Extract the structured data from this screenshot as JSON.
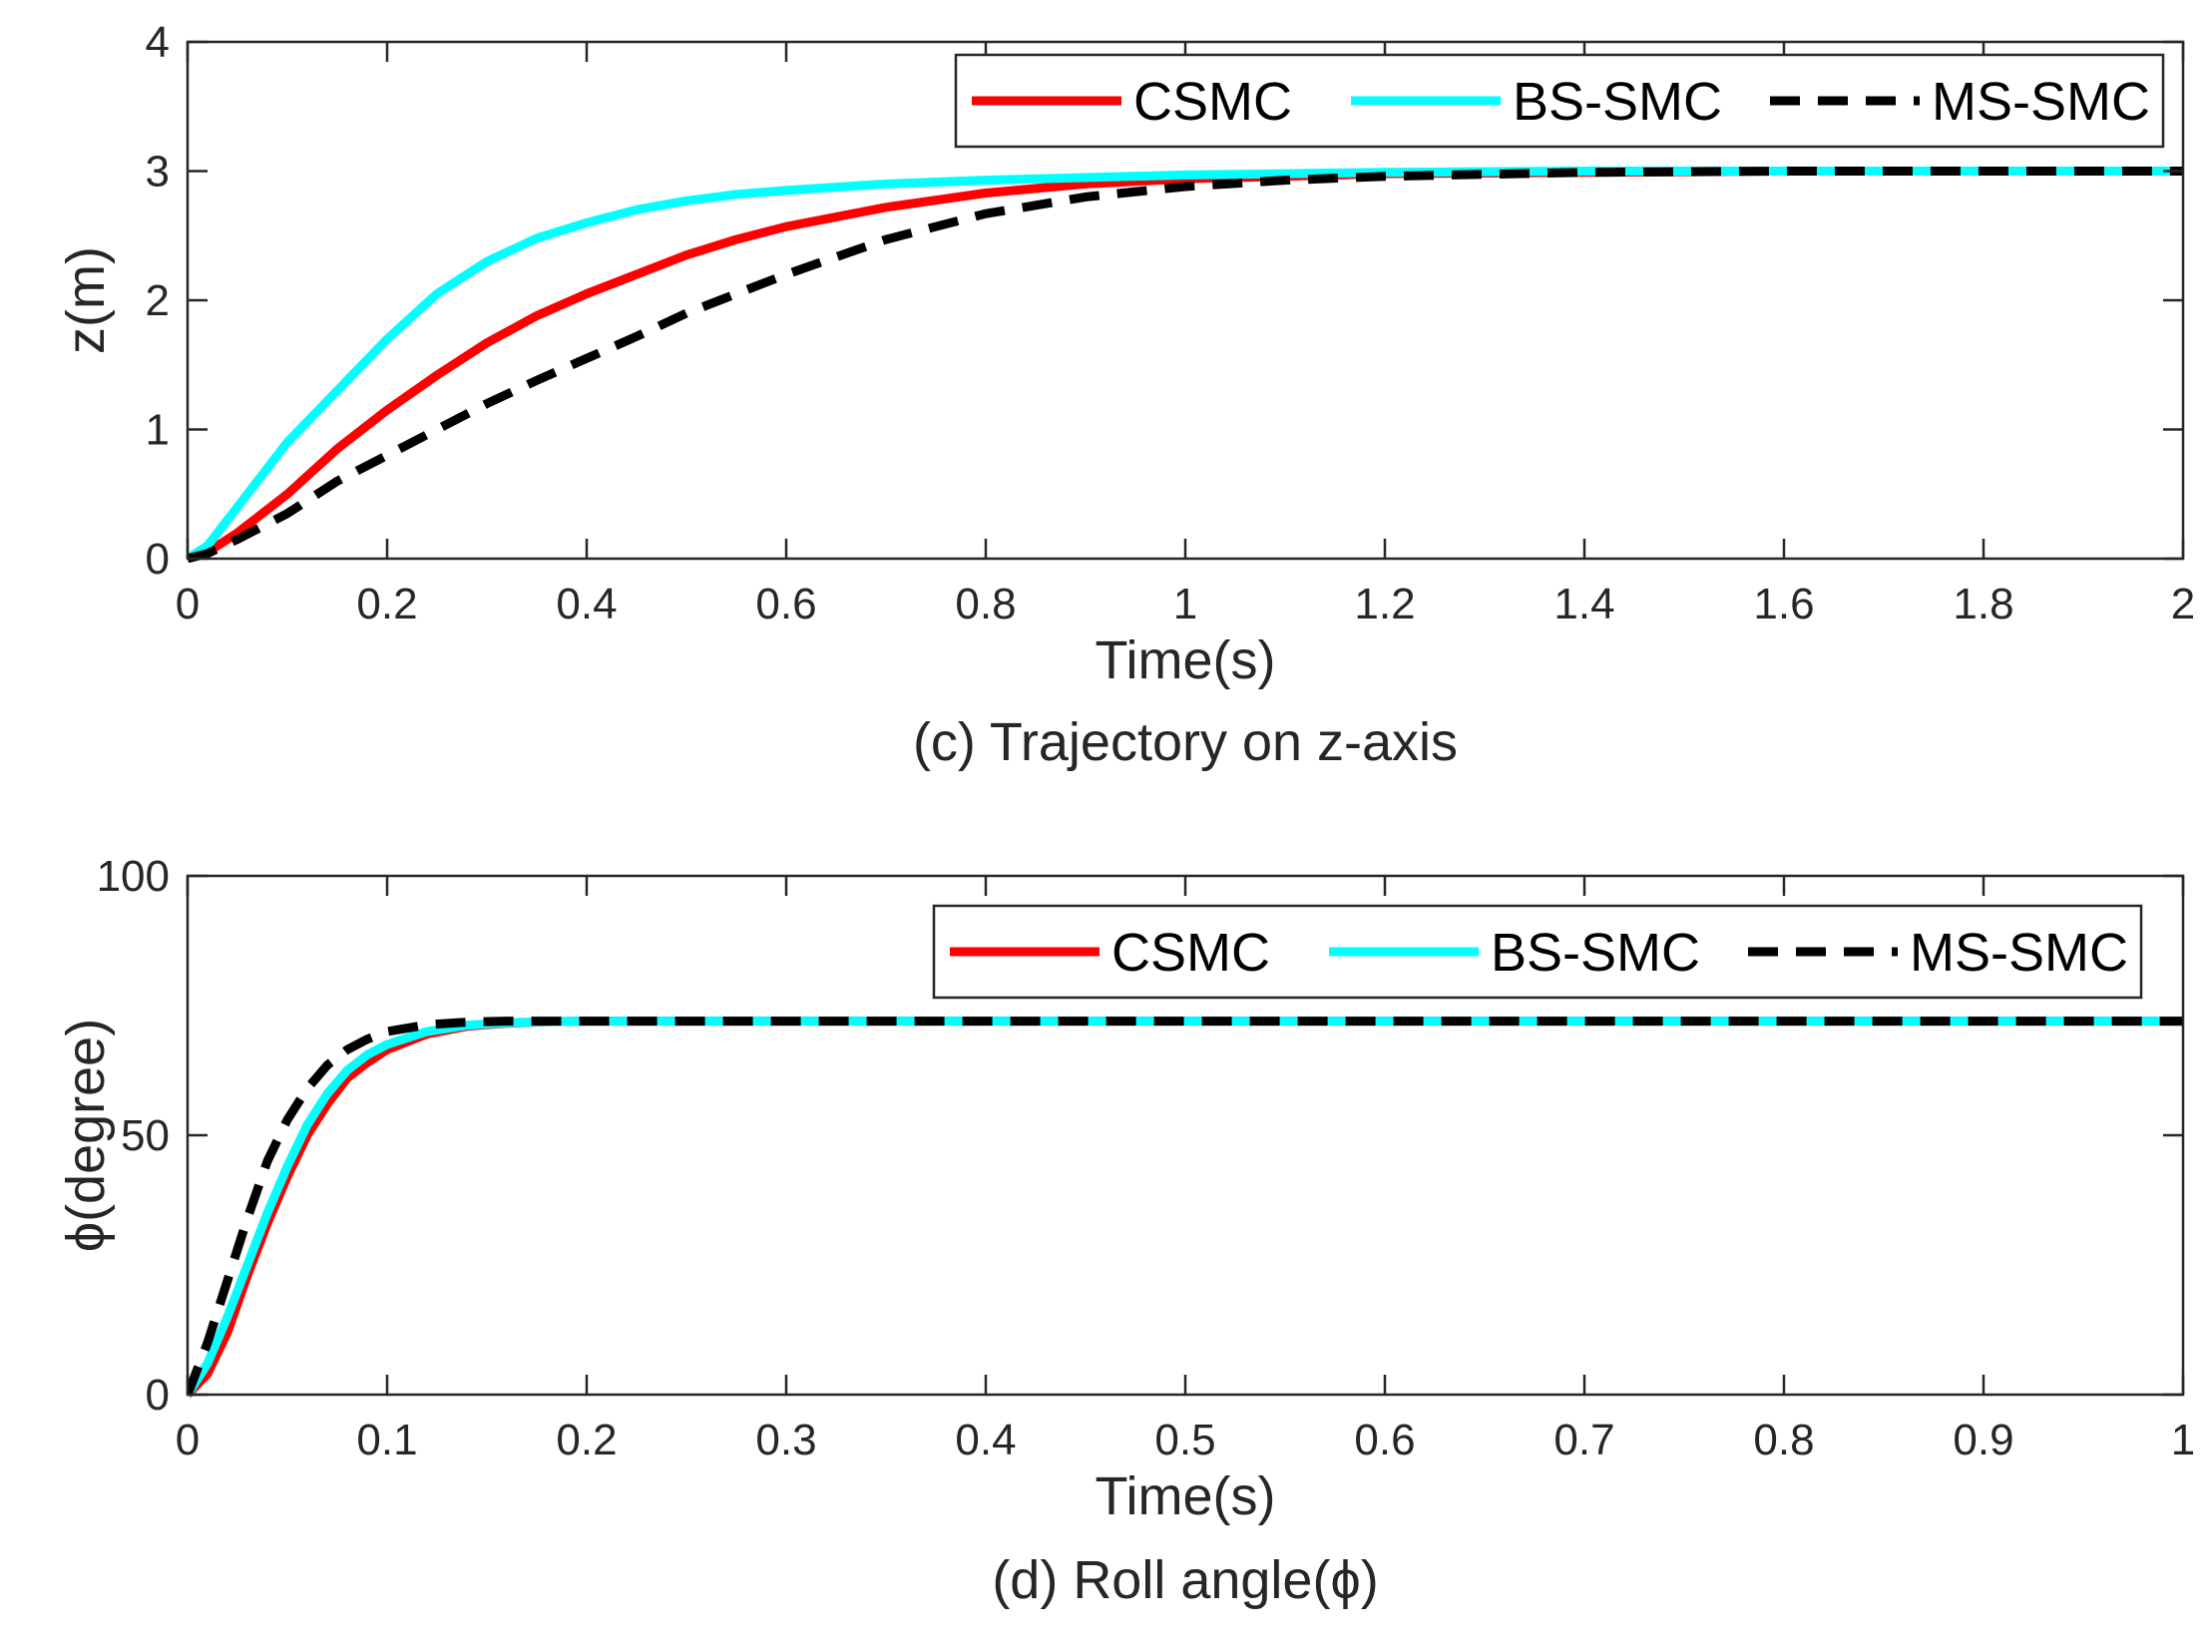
{
  "chart_data": [
    {
      "id": "c",
      "type": "line",
      "caption": "(c) Trajectory on z-axis",
      "xlabel": "Time(s)",
      "ylabel": "z(m)",
      "xlim": [
        0,
        2
      ],
      "ylim": [
        0,
        4
      ],
      "xticks": [
        "0",
        "0.2",
        "0.4",
        "0.6",
        "0.8",
        "1",
        "1.2",
        "1.4",
        "1.6",
        "1.8",
        "2"
      ],
      "yticks": [
        "0",
        "1",
        "2",
        "3",
        "4"
      ],
      "grid": false,
      "legend_position": "top-right",
      "series": [
        {
          "name": "CSMC",
          "color": "#ff0000",
          "dash": "solid",
          "x": [
            0,
            0.02,
            0.05,
            0.1,
            0.15,
            0.2,
            0.25,
            0.3,
            0.35,
            0.4,
            0.45,
            0.5,
            0.55,
            0.6,
            0.7,
            0.8,
            0.9,
            1.0,
            1.1,
            1.2,
            1.4,
            1.6,
            1.8,
            2.0
          ],
          "y": [
            0,
            0.05,
            0.2,
            0.5,
            0.85,
            1.15,
            1.42,
            1.67,
            1.88,
            2.05,
            2.2,
            2.35,
            2.47,
            2.57,
            2.72,
            2.83,
            2.9,
            2.94,
            2.96,
            2.98,
            2.99,
            3.0,
            3.0,
            3.0
          ]
        },
        {
          "name": "BS-SMC",
          "color": "#00ffff",
          "dash": "solid",
          "x": [
            0,
            0.02,
            0.05,
            0.1,
            0.15,
            0.2,
            0.25,
            0.3,
            0.35,
            0.4,
            0.45,
            0.5,
            0.55,
            0.6,
            0.7,
            0.8,
            0.9,
            1.0,
            1.2,
            1.4,
            1.6,
            1.8,
            2.0
          ],
          "y": [
            0,
            0.1,
            0.4,
            0.9,
            1.3,
            1.7,
            2.05,
            2.3,
            2.48,
            2.6,
            2.7,
            2.77,
            2.82,
            2.85,
            2.9,
            2.93,
            2.95,
            2.97,
            2.99,
            3.0,
            3.0,
            3.0,
            3.0
          ]
        },
        {
          "name": "MS-SMC",
          "color": "#000000",
          "dash": "dashed",
          "x": [
            0,
            0.02,
            0.05,
            0.1,
            0.15,
            0.2,
            0.25,
            0.3,
            0.35,
            0.4,
            0.45,
            0.5,
            0.55,
            0.6,
            0.7,
            0.8,
            0.9,
            1.0,
            1.1,
            1.2,
            1.4,
            1.6,
            1.8,
            2.0
          ],
          "y": [
            0,
            0.04,
            0.15,
            0.35,
            0.6,
            0.8,
            1.0,
            1.2,
            1.38,
            1.55,
            1.72,
            1.9,
            2.05,
            2.2,
            2.47,
            2.67,
            2.8,
            2.88,
            2.93,
            2.96,
            2.99,
            3.0,
            3.0,
            3.0
          ]
        }
      ]
    },
    {
      "id": "d",
      "type": "line",
      "caption": "(d) Roll angle(ϕ)",
      "xlabel": "Time(s)",
      "ylabel": "ϕ(degree)",
      "xlim": [
        0,
        1
      ],
      "ylim": [
        0,
        100
      ],
      "xticks": [
        "0",
        "0.1",
        "0.2",
        "0.3",
        "0.4",
        "0.5",
        "0.6",
        "0.7",
        "0.8",
        "0.9",
        "1"
      ],
      "yticks": [
        "0",
        "50",
        "100"
      ],
      "grid": false,
      "legend_position": "top-right",
      "series": [
        {
          "name": "CSMC",
          "color": "#ff0000",
          "dash": "solid",
          "x": [
            0,
            0.01,
            0.02,
            0.03,
            0.04,
            0.05,
            0.06,
            0.07,
            0.08,
            0.09,
            0.1,
            0.12,
            0.14,
            0.16,
            0.18,
            0.2,
            0.25,
            0.3,
            0.5,
            0.7,
            1.0
          ],
          "y": [
            0,
            4,
            12,
            23,
            33,
            42,
            50,
            56,
            61,
            64,
            66.5,
            69.5,
            71,
            71.6,
            71.9,
            72,
            72,
            72,
            72,
            72,
            72
          ]
        },
        {
          "name": "BS-SMC",
          "color": "#00ffff",
          "dash": "solid",
          "x": [
            0,
            0.01,
            0.02,
            0.03,
            0.04,
            0.05,
            0.06,
            0.07,
            0.08,
            0.09,
            0.1,
            0.12,
            0.14,
            0.16,
            0.18,
            0.2,
            0.25,
            0.3,
            0.5,
            0.7,
            1.0
          ],
          "y": [
            0,
            6,
            15,
            25,
            35,
            44,
            52,
            58,
            62.5,
            65.5,
            67.5,
            70,
            71.2,
            71.7,
            71.9,
            72,
            72,
            72,
            72,
            72,
            72
          ]
        },
        {
          "name": "MS-SMC",
          "color": "#000000",
          "dash": "dashed",
          "x": [
            0,
            0.01,
            0.02,
            0.03,
            0.04,
            0.05,
            0.06,
            0.07,
            0.08,
            0.09,
            0.1,
            0.12,
            0.14,
            0.16,
            0.2,
            0.25,
            0.3,
            0.5,
            0.7,
            1.0
          ],
          "y": [
            0,
            10,
            22,
            34,
            45,
            53,
            59,
            63.5,
            66.5,
            68.5,
            70,
            71.3,
            71.8,
            72,
            72,
            72,
            72,
            72,
            72,
            72
          ]
        }
      ]
    }
  ]
}
